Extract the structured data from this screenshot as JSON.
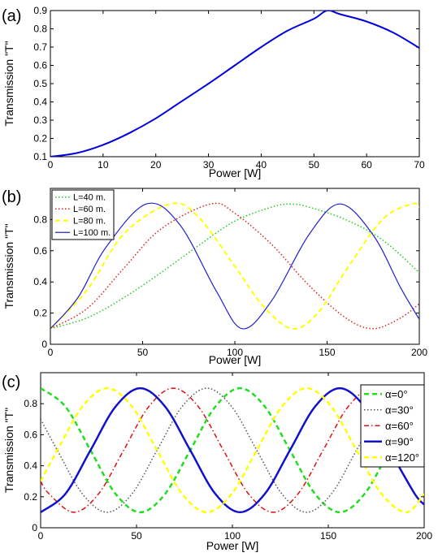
{
  "chart_data": [
    {
      "panel_label": "(a)",
      "type": "line",
      "xlabel": "Power [W]",
      "ylabel": "Transmission \"T\"",
      "xlim": [
        0,
        70
      ],
      "ylim": [
        0.1,
        0.9
      ],
      "xticks": [
        0,
        10,
        20,
        30,
        40,
        50,
        60,
        70
      ],
      "yticks": [
        0.1,
        0.2,
        0.3,
        0.4,
        0.5,
        0.6,
        0.7,
        0.8,
        0.9
      ],
      "ytick_labels": [
        "0.1",
        "0.2",
        "0.3",
        "0.4",
        "0.5",
        "0.6",
        "0.7",
        "0.8",
        "0.9"
      ],
      "legend": "none",
      "series": [
        {
          "color": "#0000dd",
          "dash": "solid",
          "width": 2,
          "x": [
            0,
            5,
            10,
            15,
            20,
            25,
            30,
            35,
            40,
            45,
            50,
            52.5,
            55,
            60,
            65,
            70
          ],
          "y": [
            0.1,
            0.12,
            0.165,
            0.23,
            0.31,
            0.405,
            0.5,
            0.6,
            0.7,
            0.79,
            0.855,
            0.9,
            0.88,
            0.84,
            0.78,
            0.695
          ]
        }
      ]
    },
    {
      "panel_label": "(b)",
      "type": "line",
      "xlabel": "Power [W]",
      "ylabel": "Transmission \"T\"",
      "xlim": [
        0,
        200
      ],
      "ylim": [
        0,
        1.0
      ],
      "xticks": [
        0,
        50,
        100,
        150,
        200
      ],
      "yticks": [
        0,
        0.2,
        0.4,
        0.6,
        0.8
      ],
      "ytick_labels": [
        "0",
        "0.2",
        "0.4",
        "0.6",
        "0.8"
      ],
      "legend": "top-left",
      "series": [
        {
          "name": "L=40 m.",
          "color": "#22cc22",
          "dash": "dotted",
          "width": 1.5,
          "x": [
            0,
            20,
            40,
            60,
            80,
            100,
            120,
            130,
            140,
            160,
            180,
            200
          ],
          "y": [
            0.1,
            0.17,
            0.3,
            0.46,
            0.63,
            0.79,
            0.88,
            0.9,
            0.88,
            0.8,
            0.67,
            0.46
          ]
        },
        {
          "name": "L=60 m.",
          "color": "#dd2222",
          "dash": "dotted",
          "width": 1.5,
          "x": [
            0,
            20,
            40,
            60,
            87,
            100,
            120,
            140,
            160,
            175,
            190,
            200
          ],
          "y": [
            0.1,
            0.23,
            0.49,
            0.74,
            0.9,
            0.84,
            0.64,
            0.38,
            0.17,
            0.1,
            0.17,
            0.26
          ]
        },
        {
          "name": "L=80 m.",
          "color": "#ffff00",
          "dash": "dashed",
          "width": 2,
          "x": [
            0,
            20,
            40,
            65,
            80,
            100,
            115,
            131,
            145,
            160,
            180,
            196,
            200
          ],
          "y": [
            0.1,
            0.35,
            0.71,
            0.9,
            0.82,
            0.5,
            0.25,
            0.1,
            0.2,
            0.47,
            0.8,
            0.9,
            0.88
          ]
        },
        {
          "name": "L=100 m.",
          "color": "#2222cc",
          "dash": "solid",
          "width": 1.2,
          "x": [
            0,
            15,
            30,
            52,
            70,
            90,
            104,
            120,
            140,
            157,
            175,
            190,
            200
          ],
          "y": [
            0.1,
            0.3,
            0.62,
            0.9,
            0.77,
            0.34,
            0.1,
            0.28,
            0.7,
            0.9,
            0.7,
            0.36,
            0.16
          ]
        }
      ]
    },
    {
      "panel_label": "(c)",
      "type": "line",
      "xlabel": "Power [W]",
      "ylabel": "Transmission \"T\"",
      "xlim": [
        0,
        200
      ],
      "ylim": [
        0,
        1.0
      ],
      "xticks": [
        0,
        50,
        100,
        150,
        200
      ],
      "yticks": [
        0,
        0.2,
        0.4,
        0.6,
        0.8
      ],
      "ytick_labels": [
        "0",
        "0.2",
        "0.4",
        "0.6",
        "0.8"
      ],
      "legend": "top-right",
      "series": [
        {
          "name": "α=0°",
          "color": "#22dd22",
          "dash": "dashed",
          "width": 2.5,
          "x": [
            0,
            13,
            26,
            39,
            52,
            65,
            78,
            91,
            104,
            117,
            130,
            143,
            156,
            169,
            182,
            195,
            200
          ],
          "y": [
            0.9,
            0.78,
            0.5,
            0.22,
            0.1,
            0.22,
            0.5,
            0.78,
            0.9,
            0.78,
            0.5,
            0.22,
            0.1,
            0.22,
            0.5,
            0.78,
            0.85
          ]
        },
        {
          "name": "α=30°",
          "color": "#555555",
          "dash": "dotted",
          "width": 1.5,
          "x": [
            0,
            8.7,
            21.7,
            34.7,
            47.7,
            60.7,
            73.7,
            86.7,
            99.7,
            112.7,
            125.7,
            138.7,
            151.7,
            164.7,
            177.7,
            190.7,
            200
          ],
          "y": [
            0.7,
            0.5,
            0.22,
            0.1,
            0.22,
            0.5,
            0.78,
            0.9,
            0.78,
            0.5,
            0.22,
            0.1,
            0.22,
            0.5,
            0.78,
            0.9,
            0.78
          ]
        },
        {
          "name": "α=60°",
          "color": "#dd1111",
          "dash": "dashdot",
          "width": 1.5,
          "x": [
            0,
            4.3,
            17.3,
            30.3,
            43.3,
            56.3,
            69.3,
            82.3,
            95.3,
            108.3,
            121.3,
            134.3,
            147.3,
            160.3,
            173.3,
            186.3,
            199.3,
            200
          ],
          "y": [
            0.3,
            0.22,
            0.1,
            0.22,
            0.5,
            0.78,
            0.9,
            0.78,
            0.5,
            0.22,
            0.1,
            0.22,
            0.5,
            0.78,
            0.9,
            0.78,
            0.5,
            0.49
          ]
        },
        {
          "name": "α=90°",
          "color": "#1111cc",
          "dash": "solid",
          "width": 2.5,
          "x": [
            0,
            13,
            26,
            39,
            52,
            65,
            78,
            91,
            104,
            117,
            130,
            143,
            156,
            169,
            182,
            195,
            200
          ],
          "y": [
            0.1,
            0.22,
            0.5,
            0.78,
            0.9,
            0.78,
            0.5,
            0.22,
            0.1,
            0.22,
            0.5,
            0.78,
            0.9,
            0.78,
            0.5,
            0.22,
            0.15
          ]
        },
        {
          "name": "α=120°",
          "color": "#ffff00",
          "dash": "dashed",
          "width": 2.5,
          "x": [
            0,
            8.7,
            21.7,
            34.7,
            47.7,
            60.7,
            73.7,
            86.7,
            99.7,
            112.7,
            125.7,
            138.7,
            151.7,
            164.7,
            177.7,
            190.7,
            200
          ],
          "y": [
            0.3,
            0.5,
            0.78,
            0.9,
            0.78,
            0.5,
            0.22,
            0.1,
            0.22,
            0.5,
            0.78,
            0.9,
            0.78,
            0.5,
            0.22,
            0.1,
            0.22
          ]
        }
      ]
    }
  ]
}
